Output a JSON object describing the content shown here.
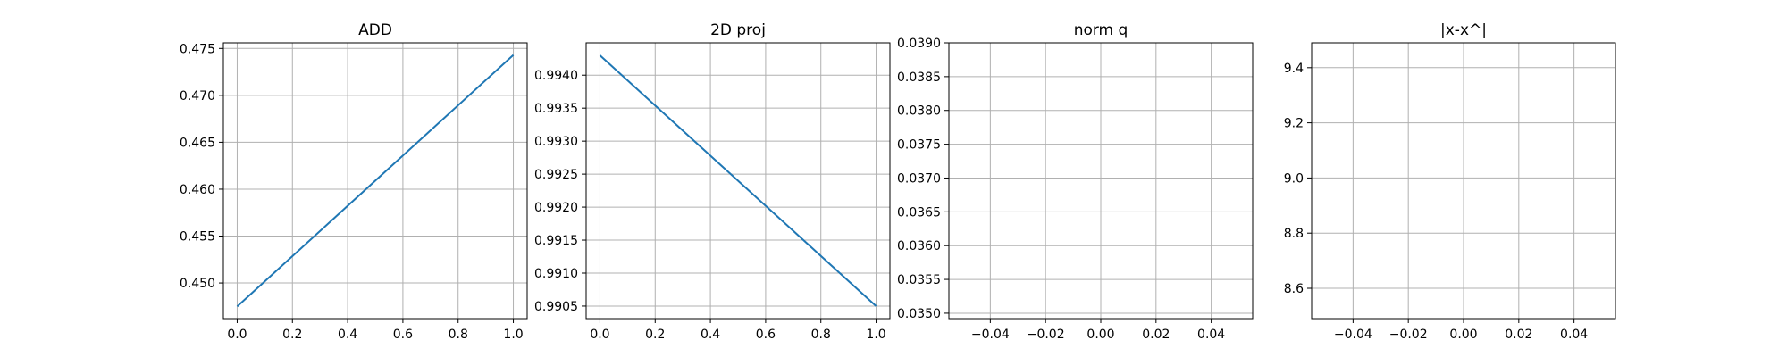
{
  "chart_data": [
    {
      "type": "line",
      "title": "ADD",
      "xlabel": "",
      "ylabel": "",
      "xlim": [
        -0.05,
        1.05
      ],
      "ylim": [
        0.4462,
        0.4756
      ],
      "xticks": [
        0.0,
        0.2,
        0.4,
        0.6,
        0.8,
        1.0
      ],
      "xtick_labels": [
        "0.0",
        "0.2",
        "0.4",
        "0.6",
        "0.8",
        "1.0"
      ],
      "yticks": [
        0.45,
        0.455,
        0.46,
        0.465,
        0.47,
        0.475
      ],
      "ytick_labels": [
        "0.450",
        "0.455",
        "0.460",
        "0.465",
        "0.470",
        "0.475"
      ],
      "grid": true,
      "series": [
        {
          "x": [
            0.0,
            1.0
          ],
          "y": [
            0.4475,
            0.4743
          ],
          "color": "#1f77b4"
        }
      ]
    },
    {
      "type": "line",
      "title": "2D proj",
      "xlabel": "",
      "ylabel": "",
      "xlim": [
        -0.05,
        1.05
      ],
      "ylim": [
        0.99031,
        0.99449
      ],
      "xticks": [
        0.0,
        0.2,
        0.4,
        0.6,
        0.8,
        1.0
      ],
      "xtick_labels": [
        "0.0",
        "0.2",
        "0.4",
        "0.6",
        "0.8",
        "1.0"
      ],
      "yticks": [
        0.9905,
        0.991,
        0.9915,
        0.992,
        0.9925,
        0.993,
        0.9935,
        0.994
      ],
      "ytick_labels": [
        "0.9905",
        "0.9910",
        "0.9915",
        "0.9920",
        "0.9925",
        "0.9930",
        "0.9935",
        "0.9940"
      ],
      "grid": true,
      "series": [
        {
          "x": [
            0.0,
            1.0
          ],
          "y": [
            0.9943,
            0.9905
          ],
          "color": "#1f77b4"
        }
      ]
    },
    {
      "type": "line",
      "title": "norm q",
      "xlabel": "",
      "ylabel": "",
      "xlim": [
        -0.055,
        0.055
      ],
      "ylim": [
        0.03492,
        0.039
      ],
      "xticks": [
        -0.04,
        -0.02,
        0.0,
        0.02,
        0.04
      ],
      "xtick_labels": [
        "−0.04",
        "−0.02",
        "0.00",
        "0.02",
        "0.04"
      ],
      "yticks": [
        0.035,
        0.0355,
        0.036,
        0.0365,
        0.037,
        0.0375,
        0.038,
        0.0385,
        0.039
      ],
      "ytick_labels": [
        "0.0350",
        "0.0355",
        "0.0360",
        "0.0365",
        "0.0370",
        "0.0375",
        "0.0380",
        "0.0385",
        "0.0390"
      ],
      "grid": true,
      "series": []
    },
    {
      "type": "line",
      "title": "|x-x^|",
      "xlabel": "",
      "ylabel": "",
      "xlim": [
        -0.055,
        0.055
      ],
      "ylim": [
        8.49,
        9.49
      ],
      "xticks": [
        -0.04,
        -0.02,
        0.0,
        0.02,
        0.04
      ],
      "xtick_labels": [
        "−0.04",
        "−0.02",
        "0.00",
        "0.02",
        "0.04"
      ],
      "yticks": [
        8.6,
        8.8,
        9.0,
        9.2,
        9.4
      ],
      "ytick_labels": [
        "8.6",
        "8.8",
        "9.0",
        "9.2",
        "9.4"
      ],
      "grid": true,
      "series": []
    }
  ]
}
